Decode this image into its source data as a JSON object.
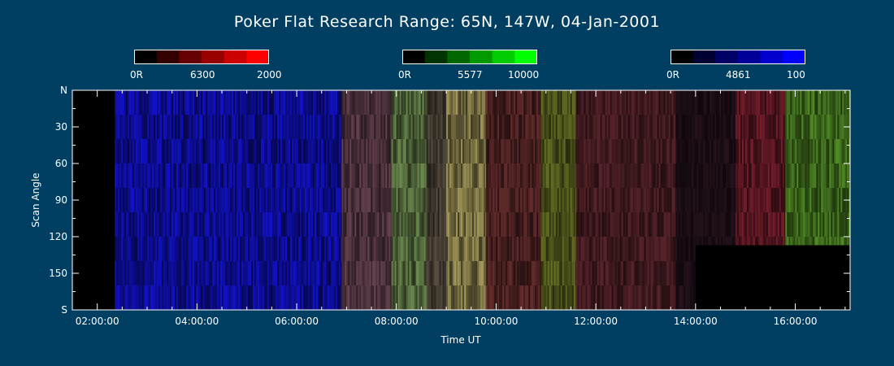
{
  "chart_data": {
    "type": "heatmap",
    "title": "Poker Flat Research Range: 65N, 147W, 04-Jan-2001",
    "xlabel": "Time UT",
    "ylabel": "Scan Angle",
    "x_ticks": [
      "02:00:00",
      "04:00:00",
      "06:00:00",
      "08:00:00",
      "10:00:00",
      "12:00:00",
      "14:00:00",
      "16:00:00"
    ],
    "x_tick_hours": [
      2,
      4,
      6,
      8,
      10,
      12,
      14,
      16
    ],
    "xlim_hours": [
      1.5,
      17.1
    ],
    "y_ticks": [
      "N",
      "30",
      "60",
      "90",
      "120",
      "150",
      "S"
    ],
    "y_tick_values": [
      0,
      30,
      60,
      90,
      120,
      150,
      180
    ],
    "ylim": [
      0,
      180
    ],
    "colorbars": [
      {
        "wavelength": "6300",
        "min_label": "0R",
        "max_label": "2000",
        "color": "#ff0000",
        "steps": [
          "#000000",
          "#330000",
          "#660000",
          "#990000",
          "#cc0000",
          "#ff0000"
        ]
      },
      {
        "wavelength": "5577",
        "min_label": "0R",
        "max_label": "10000",
        "color": "#00ff00",
        "steps": [
          "#000000",
          "#003300",
          "#006600",
          "#009900",
          "#00cc00",
          "#00ff00"
        ]
      },
      {
        "wavelength": "4861",
        "min_label": "0R",
        "max_label": "100",
        "color": "#0000ff",
        "steps": [
          "#000000",
          "#000033",
          "#000066",
          "#000099",
          "#0000cc",
          "#0000ff"
        ]
      }
    ],
    "no_data_regions": [
      {
        "t_start": 1.5,
        "t_end": 2.35,
        "angle_start": 0,
        "angle_end": 180
      },
      {
        "t_start": 14.0,
        "t_end": 17.1,
        "angle_start": 127,
        "angle_end": 180
      }
    ],
    "emission_bands": [
      {
        "t_start": 2.35,
        "t_end": 6.9,
        "r": 0.05,
        "g": 0.05,
        "b": 0.55
      },
      {
        "t_start": 6.9,
        "t_end": 7.9,
        "r": 0.28,
        "g": 0.18,
        "b": 0.22
      },
      {
        "t_start": 7.9,
        "t_end": 8.6,
        "r": 0.3,
        "g": 0.38,
        "b": 0.22
      },
      {
        "t_start": 8.6,
        "t_end": 9.0,
        "r": 0.25,
        "g": 0.22,
        "b": 0.18
      },
      {
        "t_start": 9.0,
        "t_end": 9.8,
        "r": 0.45,
        "g": 0.42,
        "b": 0.25
      },
      {
        "t_start": 9.8,
        "t_end": 10.9,
        "r": 0.28,
        "g": 0.12,
        "b": 0.12
      },
      {
        "t_start": 10.9,
        "t_end": 11.6,
        "r": 0.28,
        "g": 0.3,
        "b": 0.1
      },
      {
        "t_start": 11.6,
        "t_end": 13.6,
        "r": 0.25,
        "g": 0.1,
        "b": 0.12
      },
      {
        "t_start": 13.6,
        "t_end": 14.8,
        "r": 0.1,
        "g": 0.05,
        "b": 0.08
      },
      {
        "t_start": 14.8,
        "t_end": 15.8,
        "r": 0.32,
        "g": 0.08,
        "b": 0.12
      },
      {
        "t_start": 15.8,
        "t_end": 17.1,
        "r": 0.22,
        "g": 0.38,
        "b": 0.1
      }
    ]
  }
}
